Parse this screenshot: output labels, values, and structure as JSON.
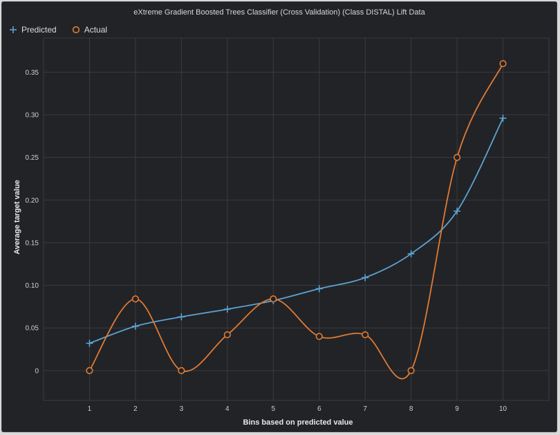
{
  "chart_data": {
    "type": "line",
    "title": "eXtreme Gradient Boosted Trees Classifier (Cross Validation) (Class DISTAL) Lift Data",
    "xlabel": "Bins based on predicted value",
    "ylabel": "Average target value",
    "x": [
      1,
      2,
      3,
      4,
      5,
      6,
      7,
      8,
      9,
      10
    ],
    "x_tick_labels": [
      "1",
      "2",
      "3",
      "4",
      "5",
      "6",
      "7",
      "8",
      "9",
      "10"
    ],
    "xlim": [
      0,
      11
    ],
    "ylim": [
      -0.035,
      0.39
    ],
    "y_ticks": [
      0,
      0.05,
      0.1,
      0.15,
      0.2,
      0.25,
      0.3,
      0.35
    ],
    "y_tick_labels": [
      "0",
      "0.05",
      "0.10",
      "0.15",
      "0.20",
      "0.25",
      "0.30",
      "0.35"
    ],
    "grid": true,
    "legend_position": "top-left",
    "series": [
      {
        "name": "Predicted",
        "marker": "plus",
        "color": "#5ba4d6",
        "values": [
          0.032,
          0.052,
          0.063,
          0.072,
          0.082,
          0.096,
          0.109,
          0.137,
          0.187,
          0.296
        ]
      },
      {
        "name": "Actual",
        "marker": "circle",
        "color": "#e07b35",
        "values": [
          0.0,
          0.084,
          0.0,
          0.042,
          0.084,
          0.04,
          0.042,
          0.0,
          0.25,
          0.36
        ]
      }
    ]
  }
}
